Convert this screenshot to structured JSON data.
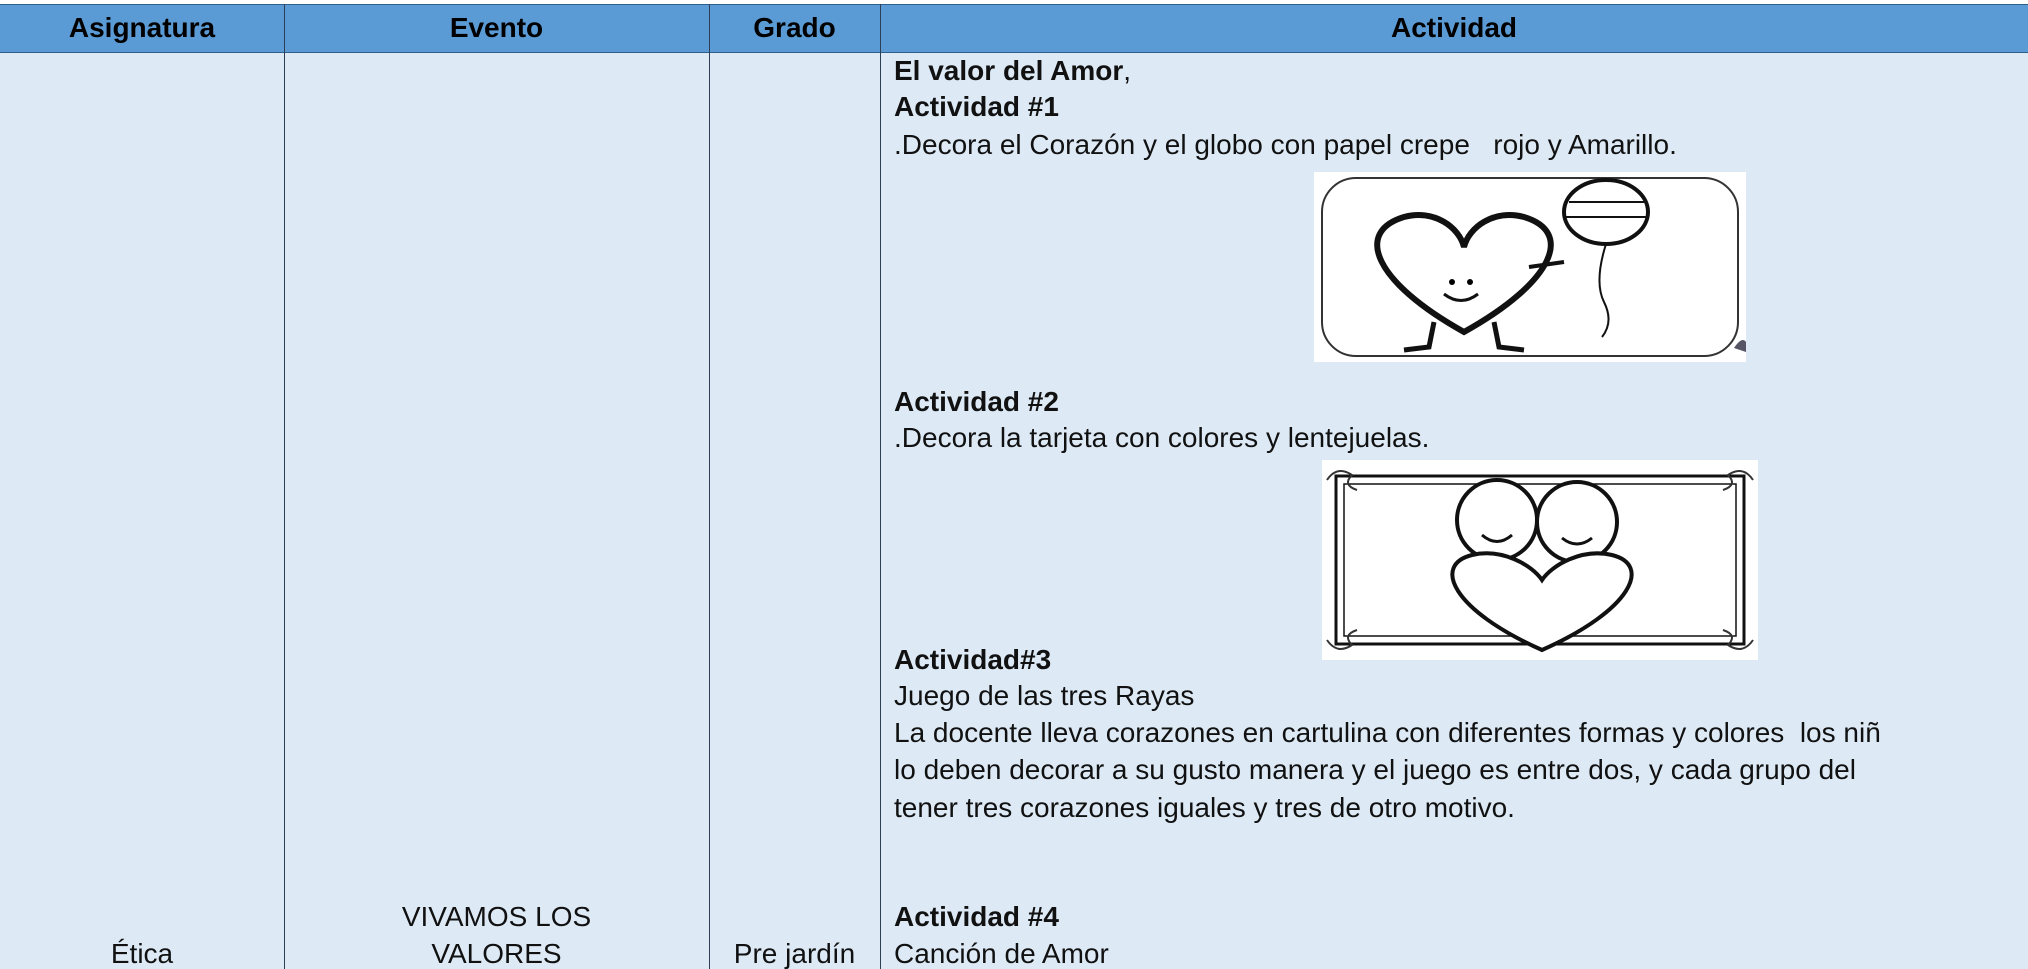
{
  "header": {
    "columns": [
      "Asignatura",
      "Evento",
      "Grado",
      "Actividad"
    ]
  },
  "row": {
    "asignatura": "Ética",
    "evento": [
      "VIVAMOS LOS",
      "VALORES"
    ],
    "grado": "Pre jardín",
    "actividad": {
      "title": "El valor del Amor",
      "title_punct": ",",
      "items": [
        {
          "heading": "Actividad #1",
          "lines": [
            ".Decora el Corazón y el globo con papel crepe   rojo y Amarillo."
          ]
        },
        {
          "heading": "Actividad #2",
          "lines": [
            ".Decora la tarjeta con colores y lentejuelas."
          ]
        },
        {
          "heading": "Actividad#3",
          "lines": [
            "Juego de las tres Rayas",
            "La docente lleva corazones en cartulina con diferentes formas y colores  los niñ",
            "lo deben decorar a su gusto manera y el juego es entre dos, y cada grupo del",
            "tener tres corazones iguales y tres de otro motivo."
          ]
        },
        {
          "heading": "Actividad #4",
          "lines": [
            "Canción de Amor"
          ]
        }
      ]
    }
  }
}
